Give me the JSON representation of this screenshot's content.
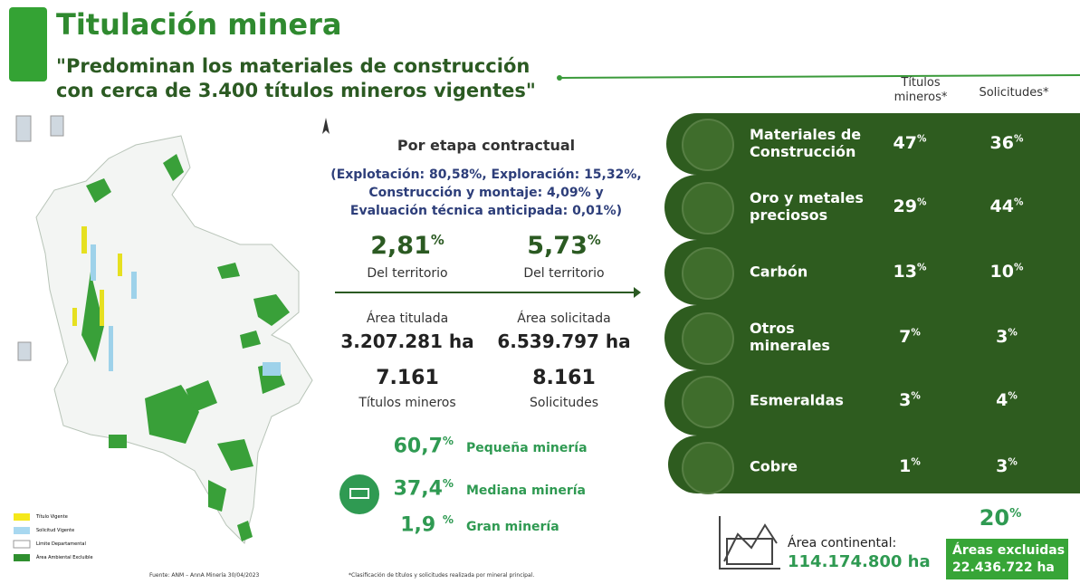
{
  "header": {
    "title": "Titulación minera",
    "subtitle_line1": "\"Predominan los materiales de construcción",
    "subtitle_line2": "con cerca de 3.400 títulos mineros vigentes\""
  },
  "map": {
    "legend": [
      "Título Vigente",
      "Solicitud Vigente",
      "Límite Departamental",
      "Área Ambiental Excluible"
    ],
    "source": "Fuente: ANM – AnnA Minería 30/04/2023"
  },
  "stage": {
    "title": "Por etapa contractual",
    "detail_lines": [
      "(Explotación: 80,58%, Exploración: 15,32%,",
      "Construcción y montaje: 4,09% y",
      "Evaluación técnica anticipada: 0,01%)"
    ]
  },
  "territory": [
    {
      "value": "2,81",
      "unit": "%",
      "label": "Del territorio"
    },
    {
      "value": "5,73",
      "unit": "%",
      "label": "Del territorio"
    }
  ],
  "areas": [
    {
      "label": "Área titulada",
      "value": "3.207.281 ha",
      "count": "7.161",
      "count_label": "Títulos mineros"
    },
    {
      "label": "Área solicitada",
      "value": "6.539.797 ha",
      "count": "8.161",
      "count_label": "Solicitudes"
    }
  ],
  "scale": [
    {
      "value": "60,7",
      "unit": "%",
      "label": "Pequeña minería"
    },
    {
      "value": "37,4",
      "unit": "%",
      "label": "Mediana minería"
    },
    {
      "value": "1,9 ",
      "unit": "%",
      "label": "Gran minería"
    }
  ],
  "note": "*Clasificación de títulos y solicitudes realizada por mineral principal.",
  "table": {
    "headers": [
      "Títulos mineros*",
      "Solicitudes*"
    ],
    "rows": [
      {
        "label": "Materiales de Construcción",
        "titulos": "47",
        "solicitudes": "36",
        "unit": "%"
      },
      {
        "label": "Oro y metales preciosos",
        "titulos": "29",
        "solicitudes": "44",
        "unit": "%"
      },
      {
        "label": "Carbón",
        "titulos": "13",
        "solicitudes": "10",
        "unit": "%"
      },
      {
        "label": "Otros minerales",
        "titulos": "7",
        "solicitudes": "3",
        "unit": "%"
      },
      {
        "label": "Esmeraldas",
        "titulos": "3",
        "solicitudes": "4",
        "unit": "%"
      },
      {
        "label": "Cobre",
        "titulos": "1",
        "solicitudes": "3",
        "unit": "%"
      }
    ]
  },
  "footer": {
    "continental_label": "Área continental:",
    "continental_value": "114.174.800 ha",
    "excluded_pct": "20",
    "excluded_unit": "%",
    "excluded_label": "Áreas excluidas",
    "excluded_value": "22.436.722 ha"
  }
}
